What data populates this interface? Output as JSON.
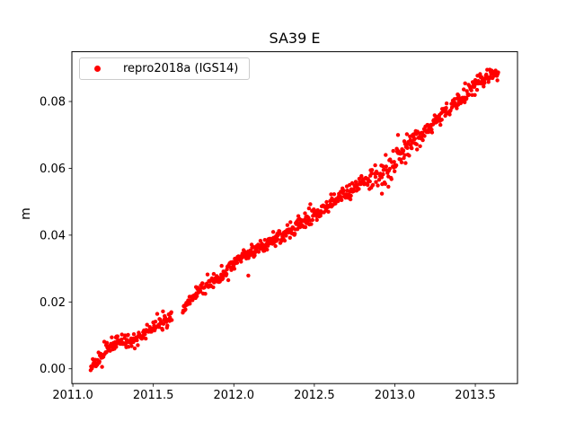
{
  "figure": {
    "background_color": "#ffffff",
    "spine_color": "#000000",
    "legend_border_color": "#cccccc"
  },
  "chart_data": {
    "type": "scatter",
    "title": "SA39 E",
    "xlabel": "",
    "ylabel": "m",
    "series_name": "repro2018a (IGS14)",
    "marker": {
      "color": "#ff0000",
      "radius_px": 2.2,
      "legend_color": "#ff0000"
    },
    "legend_position": "upper left",
    "grid": false,
    "xlim": [
      2010.994,
      2013.762
    ],
    "ylim": [
      -0.00443,
      0.0949
    ],
    "xticks": [
      2011.0,
      2011.5,
      2012.0,
      2012.5,
      2013.0,
      2013.5
    ],
    "xtick_labels": [
      "2011.0",
      "2011.5",
      "2012.0",
      "2012.5",
      "2013.0",
      "2013.5"
    ],
    "yticks": [
      0.0,
      0.02,
      0.04,
      0.06,
      0.08
    ],
    "ytick_labels": [
      "0.00",
      "0.02",
      "0.04",
      "0.06",
      "0.08"
    ],
    "trend_anchor_points": [
      [
        2011.105,
        0.0002
      ],
      [
        2011.13,
        0.0015
      ],
      [
        2011.16,
        0.003
      ],
      [
        2011.2,
        0.005
      ],
      [
        2011.24,
        0.007
      ],
      [
        2011.28,
        0.0085
      ],
      [
        2011.32,
        0.0083
      ],
      [
        2011.36,
        0.008
      ],
      [
        2011.4,
        0.009
      ],
      [
        2011.44,
        0.0105
      ],
      [
        2011.48,
        0.0118
      ],
      [
        2011.52,
        0.0127
      ],
      [
        2011.56,
        0.0138
      ],
      [
        2011.61,
        0.0155
      ],
      [
        2011.685,
        0.018
      ],
      [
        2011.72,
        0.02
      ],
      [
        2011.76,
        0.022
      ],
      [
        2011.8,
        0.0238
      ],
      [
        2011.85,
        0.025
      ],
      [
        2011.9,
        0.027
      ],
      [
        2011.95,
        0.029
      ],
      [
        2012.0,
        0.0315
      ],
      [
        2012.05,
        0.0335
      ],
      [
        2012.1,
        0.0342
      ],
      [
        2012.15,
        0.0355
      ],
      [
        2012.2,
        0.0375
      ],
      [
        2012.25,
        0.039
      ],
      [
        2012.3,
        0.04
      ],
      [
        2012.35,
        0.0415
      ],
      [
        2012.4,
        0.043
      ],
      [
        2012.46,
        0.045
      ],
      [
        2012.52,
        0.0465
      ],
      [
        2012.58,
        0.049
      ],
      [
        2012.64,
        0.0508
      ],
      [
        2012.7,
        0.0522
      ],
      [
        2012.76,
        0.0545
      ],
      [
        2012.82,
        0.056
      ],
      [
        2012.88,
        0.0578
      ],
      [
        2012.94,
        0.059
      ],
      [
        2013.0,
        0.0628
      ],
      [
        2013.08,
        0.0672
      ],
      [
        2013.16,
        0.07
      ],
      [
        2013.23,
        0.073
      ],
      [
        2013.31,
        0.0765
      ],
      [
        2013.39,
        0.08
      ],
      [
        2013.47,
        0.0835
      ],
      [
        2013.54,
        0.0865
      ],
      [
        2013.6,
        0.0885
      ],
      [
        2013.645,
        0.0895
      ]
    ],
    "sampling": {
      "start": 2011.105,
      "end": 2013.645,
      "interval_years": 0.00274,
      "dropout_fraction": 0.1,
      "noise_sd_m": 0.0011,
      "wide_noise": {
        "from": 2012.84,
        "to": 2013.16,
        "sd_m": 0.002
      },
      "gaps": [
        [
          2011.615,
          2011.683
        ]
      ],
      "seed": 7
    },
    "outlier_points": [
      [
        2011.57,
        0.0158
      ],
      [
        2012.09,
        0.0279
      ],
      [
        2012.92,
        0.0524
      ],
      [
        2012.96,
        0.0545
      ],
      [
        2013.02,
        0.07
      ]
    ]
  }
}
